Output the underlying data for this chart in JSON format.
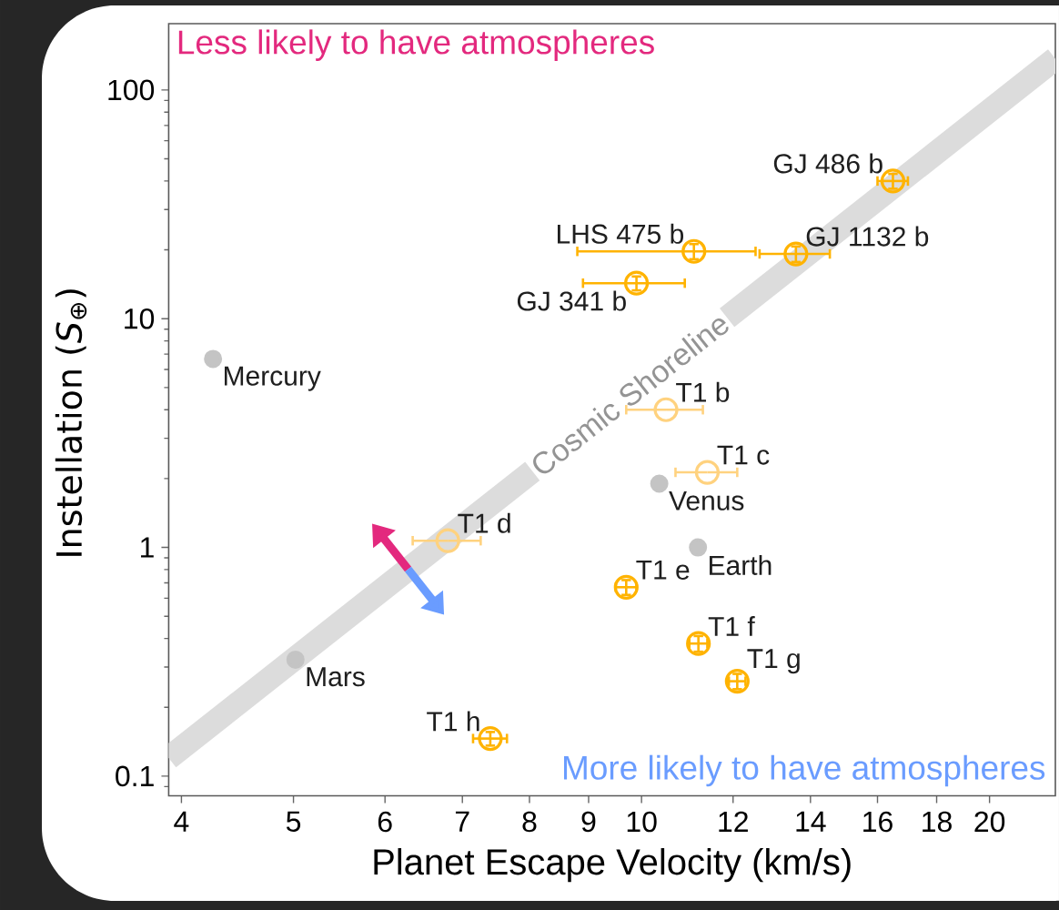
{
  "chart_data": {
    "type": "scatter",
    "xlabel": "Planet Escape Velocity (km/s)",
    "ylabel": "Instellation (*S*$_{⊕}$)",
    "log": "xy",
    "xlim": [
      3.9,
      22.8
    ],
    "ylim": [
      0.082,
      195
    ],
    "xticks": [
      4,
      5,
      6,
      7,
      8,
      9,
      10,
      12,
      14,
      16,
      18,
      20
    ],
    "yticks": [
      0.1,
      1,
      10,
      100
    ],
    "marker": "circle",
    "series": [
      {
        "type": "line",
        "name": "Cosmic Shoreline",
        "color": "#dcdcdc",
        "marker": "none",
        "x": [
          3.9,
          22.8
        ],
        "values": [
          0.12,
          137
        ]
      },
      {
        "color": "#c4c4c4",
        "x": [
          4.26,
          10.36,
          11.19,
          5.02
        ],
        "values": [
          6.67,
          1.9,
          1.0,
          0.323
        ]
      },
      {
        "color": "#ffd27f",
        "x": [
          10.5,
          11.4,
          6.8
        ],
        "values": [
          4.0,
          2.13,
          1.07
        ],
        "xerrors": [
          0.8,
          0.7,
          0.46
        ]
      },
      {
        "color": "#ffb300",
        "x": [
          16.5,
          11.1,
          13.6,
          9.9,
          9.7,
          11.2,
          12.1,
          7.4
        ],
        "values": [
          40,
          19.7,
          19.2,
          14.3,
          0.67,
          0.38,
          0.26,
          0.146
        ],
        "xerrors": [
          0.5,
          [
            8.8,
            12.55
          ],
          0.95,
          1.0,
          0.2,
          0.2,
          0.2,
          0.25
        ],
        "errors": [
          3,
          1.5,
          1.5,
          1.0,
          0.05,
          0.03,
          0.02,
          0.01
        ]
      }
    ],
    "annotations": [
      "Less likely to have atmospheres",
      {
        "text": "GJ 486 b",
        "x": 16.5,
        "y": 40
      },
      {
        "text": "LHS 475 b",
        "x": 11.1,
        "y": 19.7
      },
      {
        "text": "GJ 1132 b",
        "x": 13.6,
        "y": 19.2
      },
      {
        "text": "GJ 341 b",
        "x": 9.9,
        "y": 14.3
      },
      {
        "text": "Mercury",
        "x": 4.26,
        "y": 6.67
      },
      {
        "text": "T1 b",
        "x": 10.5,
        "y": 4.0
      },
      {
        "text": "T1 c",
        "x": 11.4,
        "y": 2.13
      },
      {
        "text": "Venus",
        "x": 10.36,
        "y": 1.9
      },
      {
        "text": "T1 d",
        "x": 6.8,
        "y": 1.07
      },
      {
        "text": "Earth",
        "x": 11.19,
        "y": 1.0
      },
      {
        "text": "T1 e",
        "x": 9.7,
        "y": 0.67
      },
      {
        "text": "T1 f",
        "x": 11.2,
        "y": 0.38
      },
      {
        "text": "T1 g",
        "x": 12.1,
        "y": 0.26
      },
      {
        "text": "Mars",
        "x": 5.02,
        "y": 0.323
      },
      {
        "text": "T1 h",
        "x": 7.4,
        "y": 0.146
      },
      "More likely to have atmospheres"
    ]
  }
}
